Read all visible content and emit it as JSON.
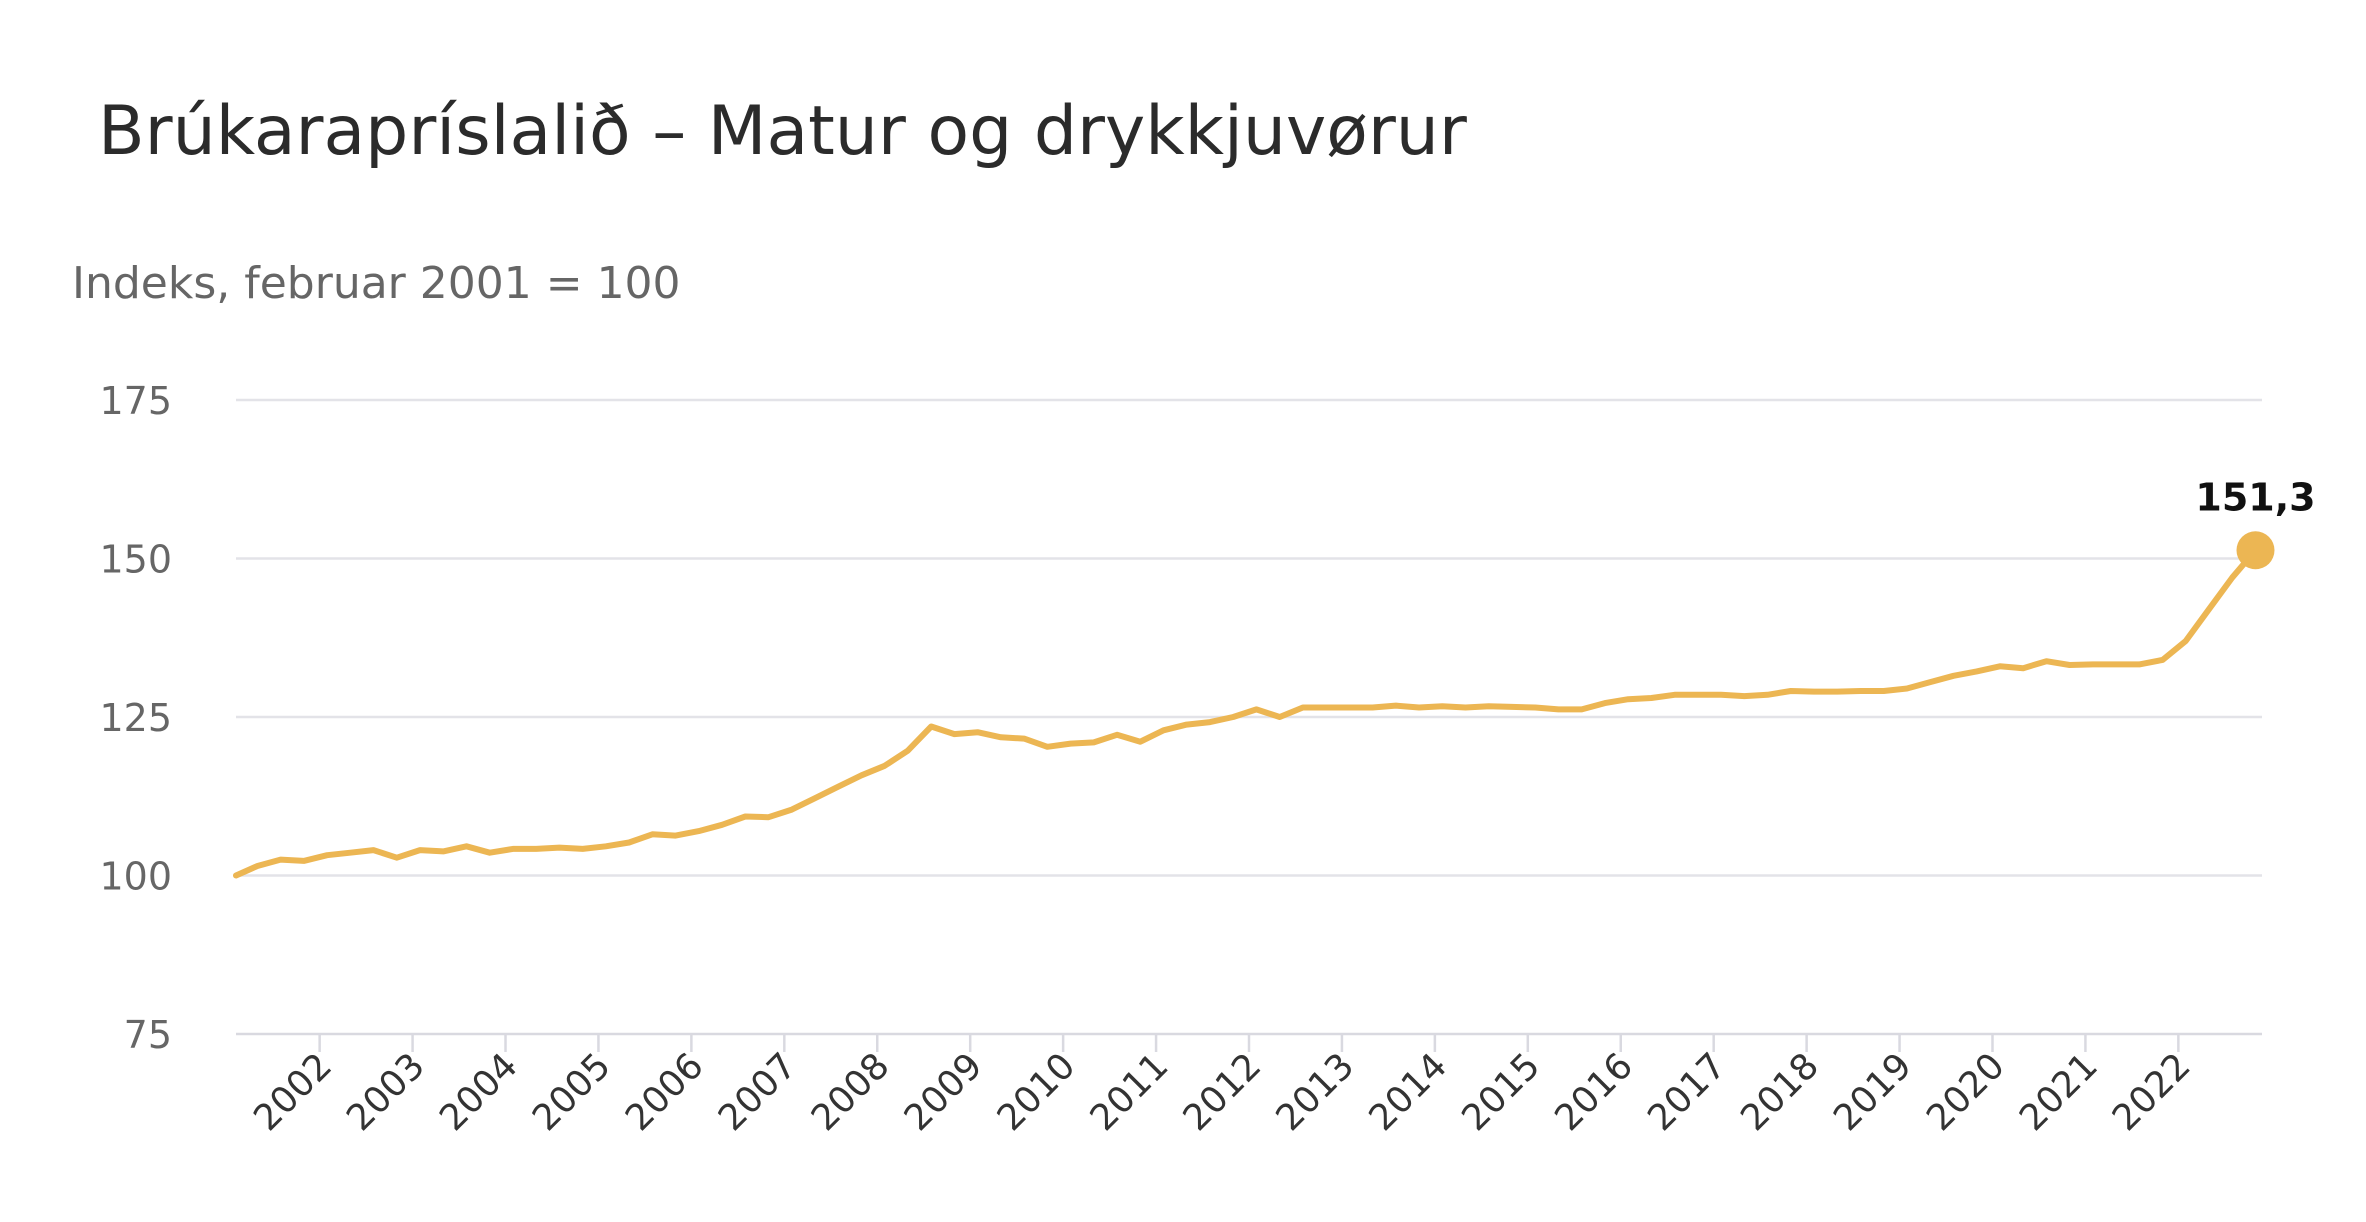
{
  "chart_data": {
    "type": "line",
    "title": "Brúkarapríslalið – Matur og drykkjuvørur",
    "subtitle": "Indeks, februar 2001 = 100",
    "xlabel": "",
    "ylabel": "",
    "ylim": [
      75,
      175
    ],
    "yticks": [
      75,
      100,
      125,
      150,
      175
    ],
    "xlim": [
      2001.1,
      2022.9
    ],
    "xticks": [
      "2002",
      "2003",
      "2004",
      "2005",
      "2006",
      "2007",
      "2008",
      "2009",
      "2010",
      "2011",
      "2012",
      "2013",
      "2014",
      "2015",
      "2016",
      "2017",
      "2018",
      "2019",
      "2020",
      "2021",
      "2022"
    ],
    "grid": true,
    "legend": "none",
    "color": "#ECB653",
    "series": [
      {
        "x": [
          2001.1,
          2001.33,
          2001.58,
          2001.83,
          2002.08,
          2002.33,
          2002.58,
          2002.83,
          2003.08,
          2003.33,
          2003.58,
          2003.83,
          2004.08,
          2004.33,
          2004.58,
          2004.83,
          2005.08,
          2005.33,
          2005.58,
          2005.83,
          2006.08,
          2006.33,
          2006.58,
          2006.83,
          2007.08,
          2007.33,
          2007.58,
          2007.83,
          2008.08,
          2008.33,
          2008.58,
          2008.83,
          2009.08,
          2009.33,
          2009.58,
          2009.83,
          2010.08,
          2010.33,
          2010.58,
          2010.83,
          2011.08,
          2011.33,
          2011.58,
          2011.83,
          2012.08,
          2012.33,
          2012.58,
          2012.83,
          2013.08,
          2013.33,
          2013.58,
          2013.83,
          2014.08,
          2014.33,
          2014.58,
          2014.83,
          2015.08,
          2015.33,
          2015.58,
          2015.83,
          2016.08,
          2016.33,
          2016.58,
          2016.83,
          2017.08,
          2017.33,
          2017.58,
          2017.83,
          2018.08,
          2018.33,
          2018.58,
          2018.83,
          2019.08,
          2019.33,
          2019.58,
          2019.83,
          2020.08,
          2020.33,
          2020.58,
          2020.83,
          2021.08,
          2021.33,
          2021.58,
          2021.83,
          2022.08,
          2022.33,
          2022.58,
          2022.83
        ],
        "values": [
          100.0,
          101.5,
          102.5,
          102.3,
          103.2,
          103.6,
          104.0,
          102.8,
          104.0,
          103.8,
          104.6,
          103.6,
          104.2,
          104.2,
          104.4,
          104.2,
          104.6,
          105.2,
          106.5,
          106.3,
          107.0,
          108.0,
          109.3,
          109.2,
          110.4,
          112.2,
          114.0,
          115.8,
          117.3,
          119.7,
          123.5,
          122.3,
          122.6,
          121.8,
          121.6,
          120.3,
          120.8,
          121.0,
          122.2,
          121.1,
          122.9,
          123.8,
          124.2,
          125.0,
          126.2,
          125.0,
          126.5,
          126.5,
          126.5,
          126.5,
          126.8,
          126.5,
          126.7,
          126.5,
          126.7,
          126.6,
          126.5,
          126.2,
          126.2,
          127.2,
          127.8,
          128.0,
          128.5,
          128.5,
          128.5,
          128.3,
          128.5,
          129.1,
          129.0,
          129.0,
          129.1,
          129.1,
          129.5,
          130.5,
          131.5,
          132.2,
          133.0,
          132.7,
          133.8,
          133.2,
          133.3,
          133.3,
          133.3,
          134.0,
          137.0,
          142.0,
          147.0,
          151.3
        ]
      }
    ],
    "annotations": [
      {
        "text": "151,3",
        "x": 2022.83,
        "y": 151.3
      }
    ]
  }
}
